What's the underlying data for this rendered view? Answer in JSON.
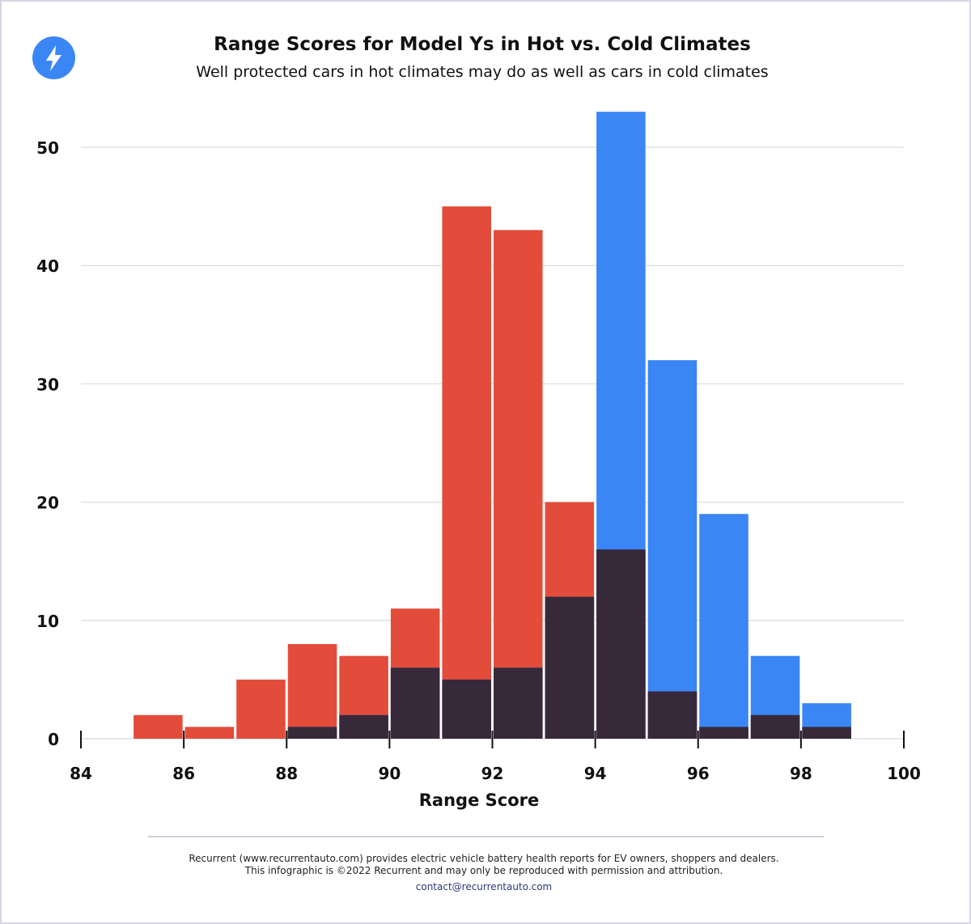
{
  "header": {
    "title": "Range Scores for Model Ys in Hot vs. Cold Climates",
    "subtitle": "Well protected cars in hot climates may do as well as cars in cold climates"
  },
  "logo": {
    "icon": "lightning-bolt-icon",
    "color": "#3b86f5"
  },
  "chart_data": {
    "type": "bar",
    "subtype": "overlapping histogram",
    "title": "Range Scores for Model Ys in Hot vs. Cold Climates",
    "subtitle": "Well protected cars in hot climates may do as well as cars in cold climates",
    "xlabel": "Range Score",
    "ylabel": "",
    "xlim": [
      84,
      100
    ],
    "ylim": [
      0,
      53
    ],
    "xticks": [
      84,
      86,
      88,
      90,
      92,
      94,
      96,
      98,
      100
    ],
    "yticks": [
      0,
      10,
      20,
      30,
      40,
      50
    ],
    "grid": "horizontal",
    "bin_starts": [
      85,
      86,
      87,
      88,
      89,
      90,
      91,
      92,
      93,
      94,
      95,
      96,
      97,
      98
    ],
    "series": [
      {
        "color": "#e34c3a",
        "values": [
          2,
          1,
          5,
          8,
          7,
          11,
          45,
          43,
          20,
          16,
          4,
          1,
          2,
          1
        ]
      },
      {
        "color": "#3b86f5",
        "values": [
          0,
          0,
          0,
          1,
          2,
          6,
          5,
          6,
          12,
          53,
          32,
          19,
          7,
          3
        ]
      }
    ],
    "overlap_color": "#37293a"
  },
  "footer": {
    "line1": "Recurrent (www.recurrentauto.com) provides electric vehicle battery health reports for EV owners, shoppers and dealers.",
    "line2": "This infographic is ©2022 Recurrent and may only be reproduced with permission and attribution.",
    "contact": "contact@recurrentauto.com"
  }
}
